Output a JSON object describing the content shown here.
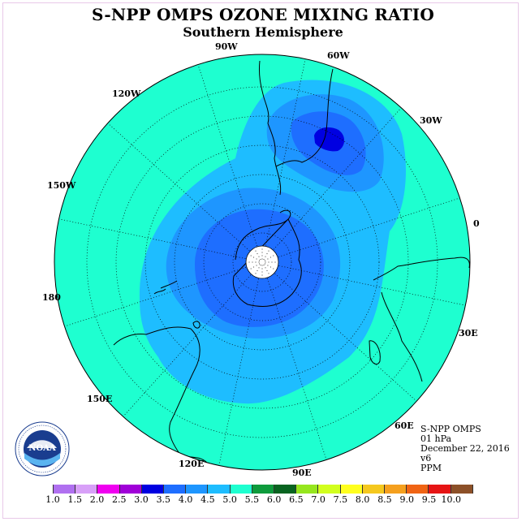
{
  "header": {
    "title": "S-NPP OMPS OZONE MIXING RATIO",
    "subtitle": "Southern Hemisphere"
  },
  "map": {
    "projection": "polar-stereographic-south",
    "longitude_labels": [
      "90W",
      "60W",
      "30W",
      "0",
      "30E",
      "60E",
      "90E",
      "120E",
      "150E",
      "180",
      "150W",
      "120W"
    ],
    "background_color": "#1effd0",
    "pole_fill_color": "#ffffff",
    "regions": [
      {
        "name": "contour-4.0",
        "color": "#1ebdff"
      },
      {
        "name": "contour-3.5",
        "color": "#1e96ff"
      },
      {
        "name": "contour-3.0",
        "color": "#1e6eff"
      },
      {
        "name": "contour-2.5",
        "color": "#0000e1"
      }
    ]
  },
  "info": {
    "instrument": "S-NPP OMPS",
    "level": "01 hPa",
    "date": "December 22, 2016",
    "version": "v6",
    "units": "PPM"
  },
  "colorbar": {
    "ticks": [
      "1.0",
      "1.5",
      "2.0",
      "2.5",
      "3.0",
      "3.5",
      "4.0",
      "4.5",
      "5.0",
      "5.5",
      "6.0",
      "6.5",
      "7.0",
      "7.5",
      "8.0",
      "8.5",
      "9.0",
      "9.5",
      "10.0"
    ],
    "colors": [
      "#b070f0",
      "#d8a0f8",
      "#f000f0",
      "#a000d8",
      "#0000e1",
      "#1e6eff",
      "#1e96ff",
      "#1ebdff",
      "#1effd0",
      "#0e9b3c",
      "#086420",
      "#96e61e",
      "#d2ff1e",
      "#ffff1e",
      "#f5c81e",
      "#f5a01e",
      "#f06414",
      "#e61414",
      "#8c5028"
    ]
  },
  "logo": {
    "text": "NOAA",
    "ring_text": "NATIONAL OCEANIC AND ATMOSPHERIC ADMINISTRATION · U.S. DEPARTMENT OF COMMERCE"
  }
}
